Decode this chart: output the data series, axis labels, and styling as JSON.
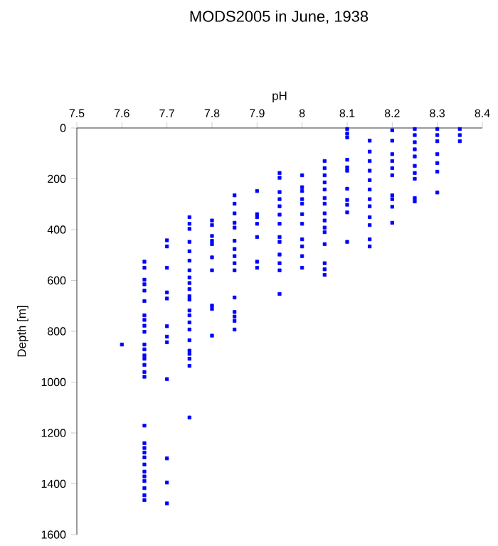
{
  "chart_data": {
    "type": "scatter",
    "title": "MODS2005 in June, 1938",
    "xlabel": "pH",
    "ylabel": "Depth [m]",
    "xlim": [
      7.5,
      8.4
    ],
    "xticks": [
      7.5,
      7.6,
      7.7,
      7.8,
      7.9,
      8,
      8.1,
      8.2,
      8.3,
      8.4
    ],
    "ylim": [
      1600,
      0
    ],
    "yticks": [
      0,
      200,
      400,
      600,
      800,
      1000,
      1200,
      1400,
      1600
    ],
    "marker": "square",
    "grid": false,
    "series": [
      {
        "color": "#0000ff",
        "x": [
          7.6,
          7.65,
          7.65,
          7.65,
          7.65,
          7.65,
          7.65,
          7.65,
          7.65,
          7.65,
          7.65,
          7.65,
          7.65,
          7.65,
          7.65,
          7.65,
          7.65,
          7.65,
          7.65,
          7.65,
          7.65,
          7.65,
          7.65,
          7.65,
          7.65,
          7.65,
          7.65,
          7.65,
          7.65,
          7.65,
          7.7,
          7.7,
          7.7,
          7.7,
          7.7,
          7.7,
          7.7,
          7.7,
          7.7,
          7.7,
          7.7,
          7.7,
          7.75,
          7.75,
          7.75,
          7.75,
          7.75,
          7.75,
          7.75,
          7.75,
          7.75,
          7.75,
          7.75,
          7.75,
          7.75,
          7.75,
          7.75,
          7.75,
          7.75,
          7.75,
          7.75,
          7.75,
          7.75,
          7.75,
          7.8,
          7.8,
          7.8,
          7.8,
          7.8,
          7.8,
          7.8,
          7.8,
          7.8,
          7.8,
          7.85,
          7.85,
          7.85,
          7.85,
          7.85,
          7.85,
          7.85,
          7.85,
          7.85,
          7.85,
          7.85,
          7.85,
          7.85,
          7.85,
          7.85,
          7.9,
          7.9,
          7.9,
          7.9,
          7.9,
          7.9,
          7.9,
          7.95,
          7.95,
          7.95,
          7.95,
          7.95,
          7.95,
          7.95,
          7.95,
          7.95,
          7.95,
          7.95,
          7.95,
          7.95,
          8,
          8,
          8,
          8,
          8,
          8,
          8,
          8,
          8,
          8,
          8,
          8.05,
          8.05,
          8.05,
          8.05,
          8.05,
          8.05,
          8.05,
          8.05,
          8.05,
          8.05,
          8.05,
          8.05,
          8.05,
          8.05,
          8.05,
          8.1,
          8.1,
          8.1,
          8.1,
          8.1,
          8.1,
          8.1,
          8.1,
          8.1,
          8.1,
          8.1,
          8.15,
          8.15,
          8.15,
          8.15,
          8.15,
          8.15,
          8.15,
          8.15,
          8.15,
          8.15,
          8.15,
          8.15,
          8.2,
          8.2,
          8.2,
          8.2,
          8.2,
          8.2,
          8.2,
          8.2,
          8.2,
          8.2,
          8.25,
          8.25,
          8.25,
          8.25,
          8.25,
          8.25,
          8.25,
          8.25,
          8.25,
          8.25,
          8.3,
          8.3,
          8.3,
          8.3,
          8.3,
          8.3,
          8.3,
          8.35,
          8.35,
          8.35
        ],
        "values": [
          852,
          526,
          550,
          597,
          615,
          640,
          681,
          737,
          755,
          778,
          802,
          852,
          871,
          895,
          908,
          932,
          960,
          979,
          1171,
          1240,
          1259,
          1277,
          1296,
          1324,
          1352,
          1371,
          1389,
          1417,
          1445,
          1464,
          442,
          466,
          550,
          647,
          671,
          780,
          821,
          843,
          988,
          1300,
          1395,
          1477,
          351,
          377,
          397,
          448,
          485,
          522,
          560,
          588,
          610,
          634,
          662,
          675,
          718,
          737,
          765,
          793,
          835,
          876,
          889,
          908,
          936,
          1139,
          364,
          382,
          425,
          444,
          457,
          509,
          560,
          699,
          712,
          817,
          265,
          298,
          336,
          373,
          392,
          444,
          476,
          504,
          532,
          560,
          667,
          724,
          742,
          759,
          793,
          248,
          339,
          351,
          377,
          429,
          526,
          550,
          177,
          196,
          252,
          280,
          308,
          341,
          377,
          429,
          448,
          498,
          532,
          560,
          653,
          186,
          233,
          248,
          280,
          298,
          339,
          377,
          438,
          466,
          504,
          550,
          130,
          158,
          186,
          214,
          242,
          276,
          298,
          336,
          364,
          392,
          410,
          457,
          532,
          556,
          578,
          4,
          22,
          37,
          125,
          155,
          168,
          239,
          283,
          302,
          332,
          448,
          50,
          93,
          130,
          168,
          205,
          242,
          280,
          308,
          351,
          382,
          438,
          466,
          9,
          50,
          103,
          130,
          158,
          186,
          265,
          280,
          310,
          373,
          4,
          28,
          56,
          84,
          112,
          149,
          177,
          200,
          276,
          289,
          4,
          28,
          52,
          103,
          138,
          172,
          254,
          4,
          28,
          52
        ]
      }
    ]
  }
}
